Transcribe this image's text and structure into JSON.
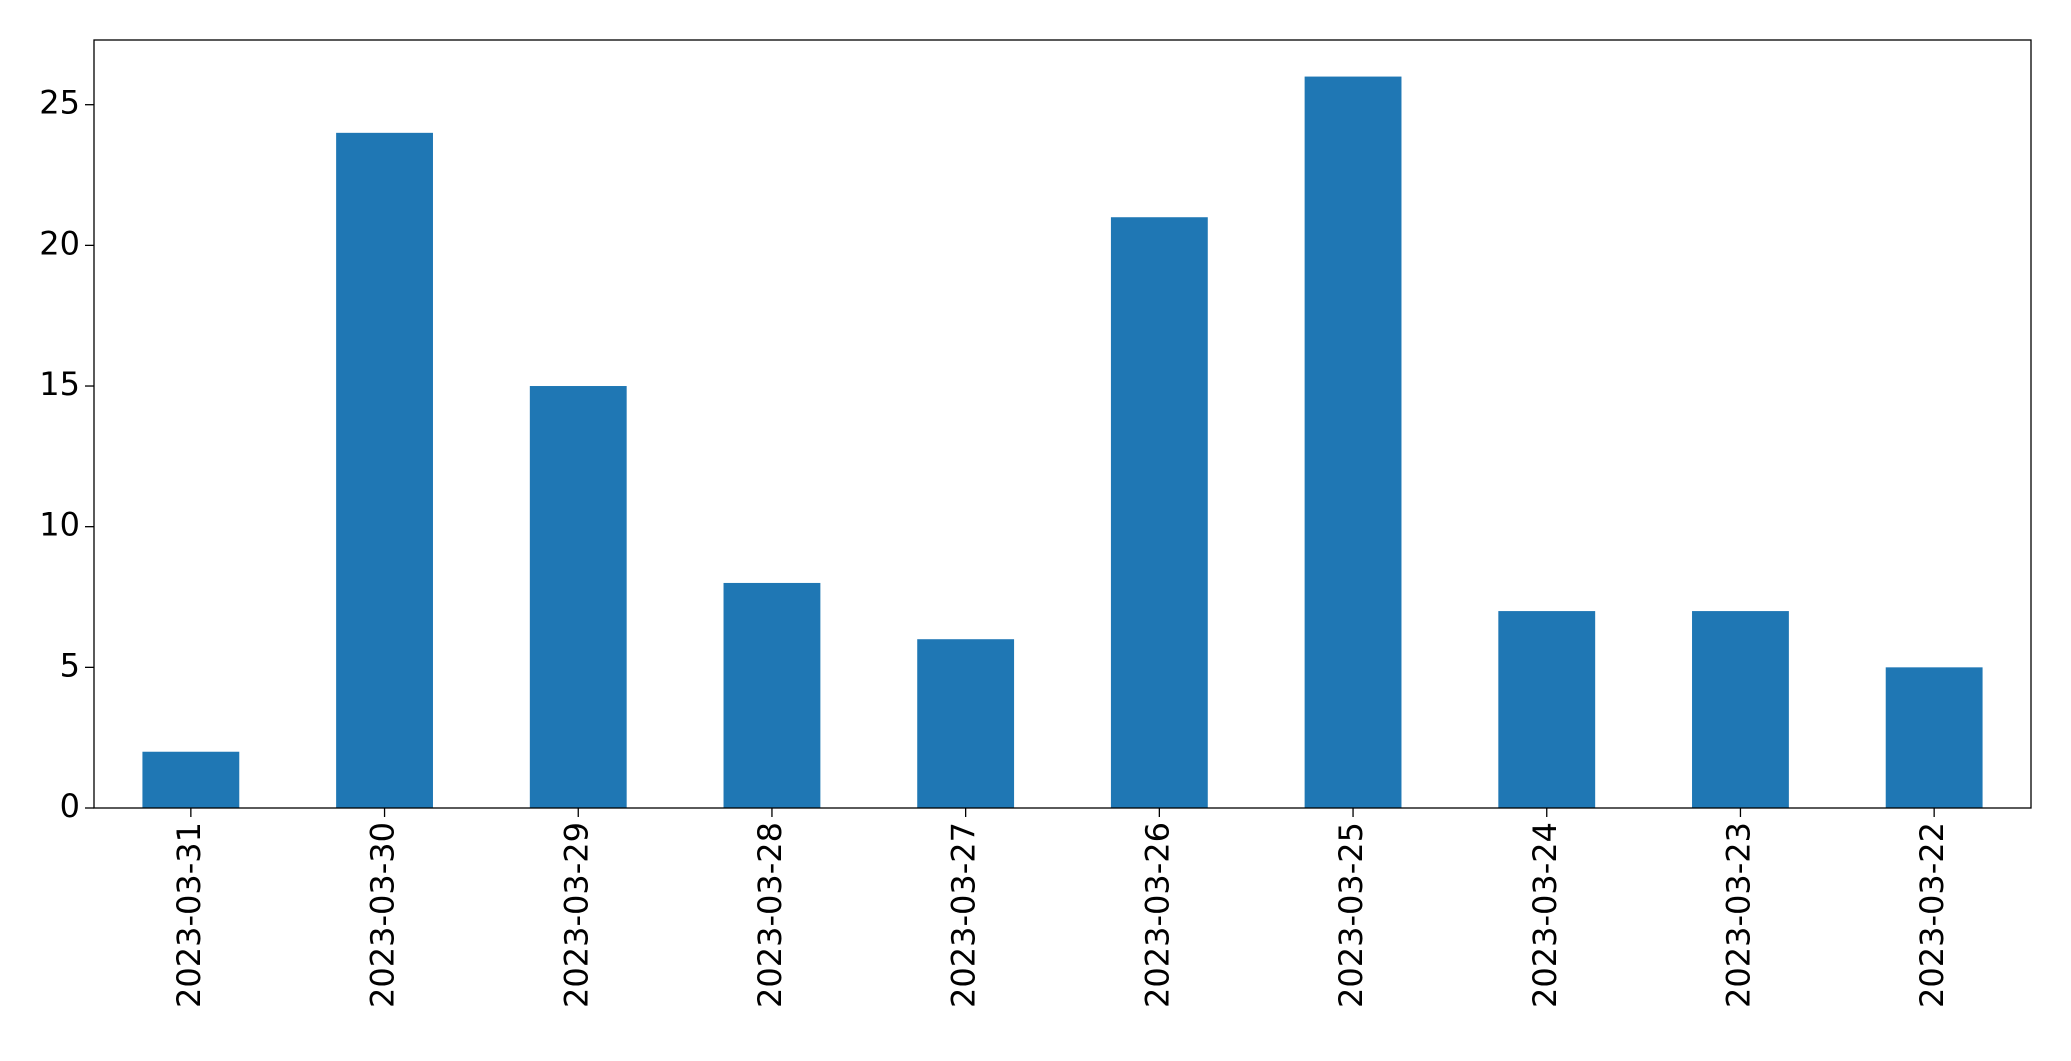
{
  "chart_data": {
    "type": "bar",
    "categories": [
      "2023-03-31",
      "2023-03-30",
      "2023-03-29",
      "2023-03-28",
      "2023-03-27",
      "2023-03-26",
      "2023-03-25",
      "2023-03-24",
      "2023-03-23",
      "2023-03-22"
    ],
    "values": [
      2,
      24,
      15,
      8,
      6,
      21,
      26,
      7,
      7,
      5
    ],
    "color": "#1f77b4",
    "ylim": [
      0,
      27.3
    ],
    "yticks": [
      0,
      5,
      10,
      15,
      20,
      25
    ],
    "grid": false
  }
}
